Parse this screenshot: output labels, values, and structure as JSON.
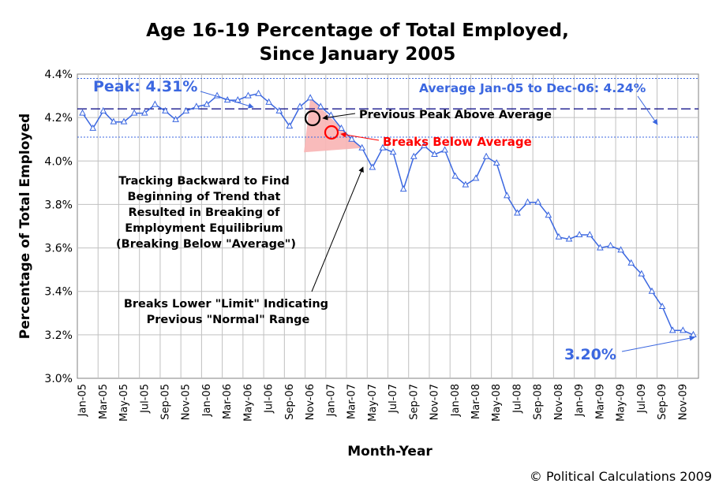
{
  "chart_data": {
    "type": "line",
    "title": [
      "Age 16-19 Percentage of Total Employed,",
      "Since January 2005"
    ],
    "xlabel": "Month-Year",
    "ylabel": "Percentage of Total Employed",
    "ylim": [
      3.0,
      4.4
    ],
    "yticks": [
      "3.0%",
      "3.2%",
      "3.4%",
      "3.6%",
      "3.8%",
      "4.0%",
      "4.2%",
      "4.4%"
    ],
    "xtick_labels": [
      "Jan-05",
      "Mar-05",
      "May-05",
      "Jul-05",
      "Sep-05",
      "Nov-05",
      "Jan-06",
      "Mar-06",
      "May-06",
      "Jul-06",
      "Sep-06",
      "Nov-06",
      "Jan-07",
      "Mar-07",
      "May-07",
      "Jul-07",
      "Sep-07",
      "Nov-07",
      "Jan-08",
      "Mar-08",
      "May-08",
      "Jul-08",
      "Sep-08",
      "Nov-08",
      "Jan-09",
      "Mar-09",
      "May-09",
      "Jul-09",
      "Sep-09",
      "Nov-09"
    ],
    "series": [
      {
        "name": "Age 16-19 Percentage of Total Employed",
        "color": "#3b67e0",
        "values": [
          4.22,
          4.15,
          4.23,
          4.18,
          4.18,
          4.22,
          4.22,
          4.26,
          4.23,
          4.19,
          4.23,
          4.25,
          4.26,
          4.3,
          4.28,
          4.28,
          4.3,
          4.31,
          4.27,
          4.23,
          4.16,
          4.25,
          4.29,
          4.25,
          4.21,
          4.15,
          4.1,
          4.06,
          3.97,
          4.06,
          4.04,
          3.87,
          4.02,
          4.07,
          4.03,
          4.05,
          3.93,
          3.89,
          3.92,
          4.02,
          3.99,
          3.84,
          3.76,
          3.81,
          3.81,
          3.75,
          3.65,
          3.64,
          3.66,
          3.66,
          3.6,
          3.61,
          3.59,
          3.53,
          3.48,
          3.4,
          3.33,
          3.22,
          3.22,
          3.2
        ]
      }
    ],
    "reference_lines": {
      "average": 4.24,
      "upper_limit": 4.38,
      "lower_limit": 4.11,
      "average_color": "#000080",
      "limit_color": "#3b67e0"
    },
    "annotations": {
      "peak": "Peak: 4.31%",
      "average": "Average Jan-05 to Dec-06: 4.24%",
      "previous_peak": "Previous Peak Above Average",
      "breaks_below": "Breaks Below Average",
      "tracking": [
        "Tracking Backward to Find",
        "Beginning of Trend that",
        "Resulted in Breaking of",
        "Employment Equilibrium",
        "(Breaking Below \"Average\")"
      ],
      "breaks_lower": [
        "Breaks Lower \"Limit\" Indicating",
        "Previous \"Normal\" Range"
      ],
      "last_value": "3.20%"
    },
    "highlight_color": "#ff0000",
    "shade_color": "#f8b4b4"
  },
  "credit": "© Political Calculations 2009"
}
